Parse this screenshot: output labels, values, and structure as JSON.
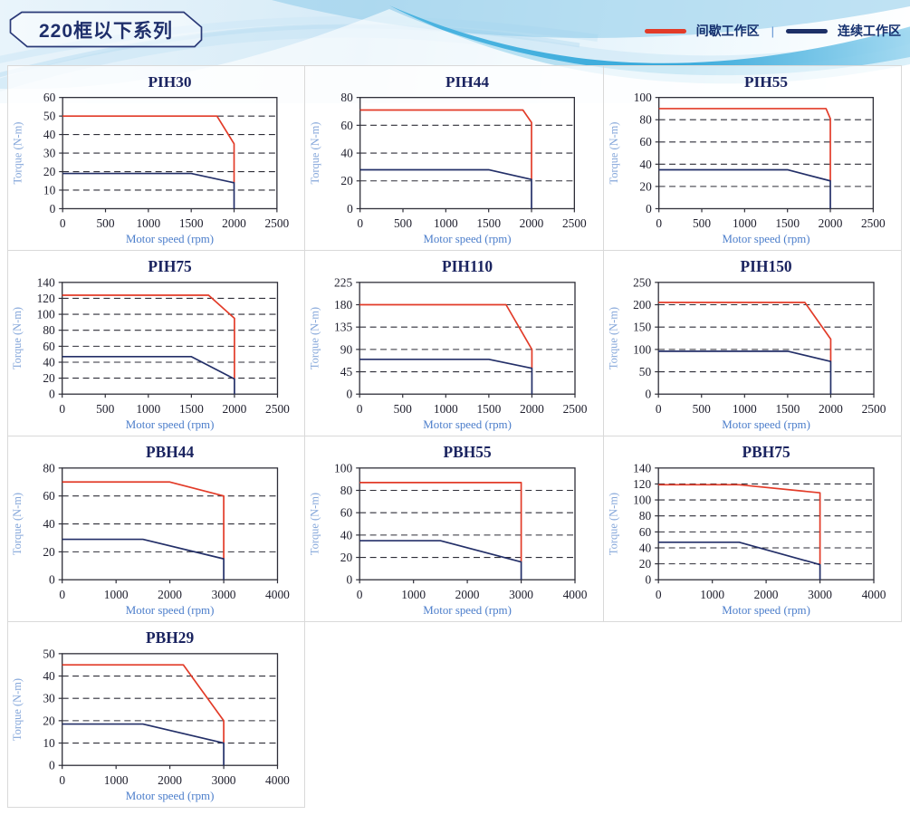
{
  "header": {
    "series_title": "220框以下系列",
    "legend_separator": "|",
    "legend": [
      {
        "label": "间歇工作区",
        "color": "#e23b28"
      },
      {
        "label": "连续工作区",
        "color": "#1d3067"
      }
    ]
  },
  "colors": {
    "intermittent_line": "#e23b28",
    "continuous_line": "#232f68",
    "chart_title": "#1b2460",
    "axis_label_x": "#4c7ecb",
    "axis_label_y": "#85a7da",
    "grid_border": "#d9d9d9"
  },
  "chart_data": [
    {
      "title": "PIH30",
      "type": "line",
      "xlabel": "Motor speed (rpm)",
      "ylabel": "Torque (N-m)",
      "xlim": [
        0,
        2500
      ],
      "xticks": [
        0,
        500,
        1000,
        1500,
        2000,
        2500
      ],
      "ylim": [
        0,
        60
      ],
      "yticks": [
        0,
        10,
        20,
        30,
        40,
        50,
        60
      ],
      "grid": "dashed-horizontal",
      "legend_position": "none",
      "series": [
        {
          "name": "间歇工作区",
          "color": "#e23b28",
          "points": [
            [
              0,
              50
            ],
            [
              1800,
              50
            ],
            [
              2000,
              35
            ],
            [
              2000,
              14
            ]
          ]
        },
        {
          "name": "连续工作区",
          "color": "#232f68",
          "points": [
            [
              0,
              19
            ],
            [
              1500,
              19
            ],
            [
              2000,
              14
            ],
            [
              2000,
              0
            ]
          ]
        }
      ]
    },
    {
      "title": "PIH44",
      "type": "line",
      "xlabel": "Motor speed (rpm)",
      "ylabel": "Torque (N-m)",
      "xlim": [
        0,
        2500
      ],
      "xticks": [
        0,
        500,
        1000,
        1500,
        2000,
        2500
      ],
      "ylim": [
        0,
        80
      ],
      "yticks": [
        0,
        20,
        40,
        60,
        80
      ],
      "grid": "dashed-horizontal",
      "legend_position": "none",
      "series": [
        {
          "name": "间歇工作区",
          "color": "#e23b28",
          "points": [
            [
              0,
              71
            ],
            [
              1900,
              71
            ],
            [
              2000,
              62
            ],
            [
              2000,
              21
            ]
          ]
        },
        {
          "name": "连续工作区",
          "color": "#232f68",
          "points": [
            [
              0,
              28
            ],
            [
              1500,
              28
            ],
            [
              2000,
              21
            ],
            [
              2000,
              0
            ]
          ]
        }
      ]
    },
    {
      "title": "PIH55",
      "type": "line",
      "xlabel": "Motor speed (rpm)",
      "ylabel": "Torque (N-m)",
      "xlim": [
        0,
        2500
      ],
      "xticks": [
        0,
        500,
        1000,
        1500,
        2000,
        2500
      ],
      "ylim": [
        0,
        100
      ],
      "yticks": [
        0,
        20,
        40,
        60,
        80,
        100
      ],
      "grid": "dashed-horizontal",
      "legend_position": "none",
      "series": [
        {
          "name": "间歇工作区",
          "color": "#e23b28",
          "points": [
            [
              0,
              90
            ],
            [
              1950,
              90
            ],
            [
              2000,
              81
            ],
            [
              2000,
              25
            ]
          ]
        },
        {
          "name": "连续工作区",
          "color": "#232f68",
          "points": [
            [
              0,
              35
            ],
            [
              1500,
              35
            ],
            [
              2000,
              25
            ],
            [
              2000,
              0
            ]
          ]
        }
      ]
    },
    {
      "title": "PIH75",
      "type": "line",
      "xlabel": "Motor speed (rpm)",
      "ylabel": "Torque (N-m)",
      "xlim": [
        0,
        2500
      ],
      "xticks": [
        0,
        500,
        1000,
        1500,
        2000,
        2500
      ],
      "ylim": [
        0,
        140
      ],
      "yticks": [
        0,
        20,
        40,
        60,
        80,
        100,
        120,
        140
      ],
      "grid": "dashed-horizontal",
      "legend_position": "none",
      "series": [
        {
          "name": "间歇工作区",
          "color": "#e23b28",
          "points": [
            [
              0,
              124
            ],
            [
              1700,
              124
            ],
            [
              2000,
              95
            ],
            [
              2000,
              19
            ]
          ]
        },
        {
          "name": "连续工作区",
          "color": "#232f68",
          "points": [
            [
              0,
              47
            ],
            [
              1500,
              47
            ],
            [
              2000,
              19
            ],
            [
              2000,
              0
            ]
          ]
        }
      ]
    },
    {
      "title": "PIH110",
      "type": "line",
      "xlabel": "Motor speed (rpm)",
      "ylabel": "Torque (N-m)",
      "xlim": [
        0,
        2500
      ],
      "xticks": [
        0,
        500,
        1000,
        1500,
        2000,
        2500
      ],
      "ylim": [
        0,
        225
      ],
      "yticks": [
        0,
        45,
        90,
        135,
        180,
        225
      ],
      "grid": "dashed-horizontal",
      "legend_position": "none",
      "series": [
        {
          "name": "间歇工作区",
          "color": "#e23b28",
          "points": [
            [
              0,
              180
            ],
            [
              1700,
              180
            ],
            [
              2000,
              90
            ],
            [
              2000,
              52
            ]
          ]
        },
        {
          "name": "连续工作区",
          "color": "#232f68",
          "points": [
            [
              0,
              70
            ],
            [
              1500,
              70
            ],
            [
              2000,
              52
            ],
            [
              2000,
              0
            ]
          ]
        }
      ]
    },
    {
      "title": "PIH150",
      "type": "line",
      "xlabel": "Motor speed (rpm)",
      "ylabel": "Torque (N-m)",
      "xlim": [
        0,
        2500
      ],
      "xticks": [
        0,
        500,
        1000,
        1500,
        2000,
        2500
      ],
      "ylim": [
        0,
        250
      ],
      "yticks": [
        0,
        50,
        100,
        150,
        200,
        250
      ],
      "grid": "dashed-horizontal",
      "legend_position": "none",
      "series": [
        {
          "name": "间歇工作区",
          "color": "#e23b28",
          "points": [
            [
              0,
              205
            ],
            [
              1700,
              205
            ],
            [
              2000,
              123
            ],
            [
              2000,
              73
            ]
          ]
        },
        {
          "name": "连续工作区",
          "color": "#232f68",
          "points": [
            [
              0,
              96
            ],
            [
              1500,
              96
            ],
            [
              2000,
              73
            ],
            [
              2000,
              0
            ]
          ]
        }
      ]
    },
    {
      "title": "PBH44",
      "type": "line",
      "xlabel": "Motor speed (rpm)",
      "ylabel": "Torque (N-m)",
      "xlim": [
        0,
        4000
      ],
      "xticks": [
        0,
        1000,
        2000,
        3000,
        4000
      ],
      "ylim": [
        0,
        80
      ],
      "yticks": [
        0,
        20,
        40,
        60,
        80
      ],
      "grid": "dashed-horizontal",
      "legend_position": "none",
      "series": [
        {
          "name": "间歇工作区",
          "color": "#e23b28",
          "points": [
            [
              0,
              70
            ],
            [
              2000,
              70
            ],
            [
              3000,
              60
            ],
            [
              3000,
              15
            ]
          ]
        },
        {
          "name": "连续工作区",
          "color": "#232f68",
          "points": [
            [
              0,
              29
            ],
            [
              1500,
              29
            ],
            [
              3000,
              15
            ],
            [
              3000,
              0
            ]
          ]
        }
      ]
    },
    {
      "title": "PBH55",
      "type": "line",
      "xlabel": "Motor speed (rpm)",
      "ylabel": "Torque (N-m)",
      "xlim": [
        0,
        4000
      ],
      "xticks": [
        0,
        1000,
        2000,
        3000,
        4000
      ],
      "ylim": [
        0,
        100
      ],
      "yticks": [
        0,
        20,
        40,
        60,
        80,
        100
      ],
      "grid": "dashed-horizontal",
      "legend_position": "none",
      "series": [
        {
          "name": "间歇工作区",
          "color": "#e23b28",
          "points": [
            [
              0,
              87
            ],
            [
              3000,
              87
            ],
            [
              3000,
              16
            ]
          ]
        },
        {
          "name": "连续工作区",
          "color": "#232f68",
          "points": [
            [
              0,
              35
            ],
            [
              1500,
              35
            ],
            [
              3000,
              16
            ],
            [
              3000,
              0
            ]
          ]
        }
      ]
    },
    {
      "title": "PBH75",
      "type": "line",
      "xlabel": "Motor speed (rpm)",
      "ylabel": "Torque (N-m)",
      "xlim": [
        0,
        4000
      ],
      "xticks": [
        0,
        1000,
        2000,
        3000,
        4000
      ],
      "ylim": [
        0,
        140
      ],
      "yticks": [
        0,
        20,
        40,
        60,
        80,
        100,
        120,
        140
      ],
      "grid": "dashed-horizontal",
      "legend_position": "none",
      "series": [
        {
          "name": "间歇工作区",
          "color": "#e23b28",
          "points": [
            [
              0,
              119
            ],
            [
              1500,
              119
            ],
            [
              3000,
              109
            ],
            [
              3000,
              19
            ]
          ]
        },
        {
          "name": "连续工作区",
          "color": "#232f68",
          "points": [
            [
              0,
              47
            ],
            [
              1500,
              47
            ],
            [
              3000,
              19
            ],
            [
              3000,
              0
            ]
          ]
        }
      ]
    },
    {
      "title": "PBH29",
      "type": "line",
      "xlabel": "Motor speed (rpm)",
      "ylabel": "Torque (N-m)",
      "xlim": [
        0,
        4000
      ],
      "xticks": [
        0,
        1000,
        2000,
        3000,
        4000
      ],
      "ylim": [
        0,
        50
      ],
      "yticks": [
        0,
        10,
        20,
        30,
        40,
        50
      ],
      "grid": "dashed-horizontal",
      "legend_position": "none",
      "series": [
        {
          "name": "间歇工作区",
          "color": "#e23b28",
          "points": [
            [
              0,
              45
            ],
            [
              2250,
              45
            ],
            [
              3000,
              20
            ],
            [
              3000,
              10
            ]
          ]
        },
        {
          "name": "连续工作区",
          "color": "#232f68",
          "points": [
            [
              0,
              18.5
            ],
            [
              1500,
              18.5
            ],
            [
              3000,
              10
            ],
            [
              3000,
              0
            ]
          ]
        }
      ]
    }
  ]
}
